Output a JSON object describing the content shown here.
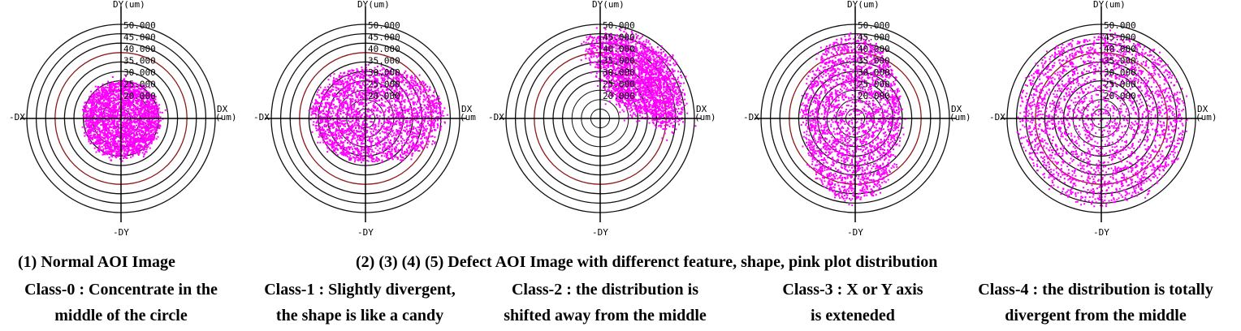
{
  "chart_data": [
    {
      "type": "scatter",
      "label": "Class-0",
      "axis_labels": {
        "dy": "DY(um)",
        "dx": "DX",
        "dx_unit": "(um)",
        "neg_dx": "-DX",
        "neg_dy": "-DY"
      },
      "ring_labels": [
        "50.000",
        "45.000",
        "40.000",
        "35.000",
        "30.000",
        "25.000",
        "20.000"
      ],
      "rings": [
        20,
        25,
        30,
        35,
        40,
        45,
        50
      ],
      "red_ring": 35,
      "rmax": 50,
      "distribution": {
        "shape": "ellipse",
        "cx": 0,
        "cy": 0,
        "rx": 20,
        "ry": 20,
        "color": "#ff00ff"
      }
    },
    {
      "type": "scatter",
      "label": "Class-1",
      "axis_labels": {
        "dy": "DY(um)",
        "dx": "DX",
        "dx_unit": "(um",
        "neg_dx": "-DX",
        "neg_dy": "-DY"
      },
      "ring_labels": [
        "50.000",
        "45.000",
        "40.000",
        "35.000",
        "30.000",
        "25.000",
        "20.000"
      ],
      "rings": [
        20,
        25,
        30,
        35,
        40,
        45,
        50
      ],
      "red_ring": 35,
      "rmax": 50,
      "distribution": {
        "shape": "candy",
        "cx": 2,
        "cy": 2,
        "rx": 34,
        "ry": 25,
        "color": "#ff00ff"
      }
    },
    {
      "type": "scatter",
      "label": "Class-2",
      "axis_labels": {
        "dy": "DY(um)",
        "dx": "DX",
        "dx_unit": "(um)",
        "neg_dx": "-DX",
        "neg_dy": "-DY"
      },
      "ring_labels": [
        "50.000",
        "45.000",
        "40.000",
        "35.000",
        "30.000",
        "25.000",
        "20.000"
      ],
      "rings": [
        20,
        25,
        30,
        35,
        40,
        45,
        50
      ],
      "red_ring": 35,
      "rmax": 50,
      "distribution": {
        "shape": "shifted",
        "cx": 12,
        "cy": 16,
        "rx": 30,
        "ry": 34,
        "color": "#ff00ff"
      }
    },
    {
      "type": "scatter",
      "label": "Class-3",
      "axis_labels": {
        "dy": "DY(um)",
        "dx": "DX",
        "dx_unit": "(um)",
        "neg_dx": "-DX",
        "neg_dy": "-DY"
      },
      "ring_labels": [
        "50.000",
        "45.000",
        "40.000",
        "35.000",
        "30.000",
        "25.000",
        "20.000"
      ],
      "rings": [
        20,
        25,
        30,
        35,
        40,
        45,
        50
      ],
      "red_ring": 35,
      "rmax": 50,
      "distribution": {
        "shape": "ellipse",
        "cx": -2,
        "cy": 0,
        "rx": 26,
        "ry": 44,
        "color": "#ff00ff"
      }
    },
    {
      "type": "scatter",
      "label": "Class-4",
      "axis_labels": {
        "dy": "DY(um)",
        "dx": "DX",
        "dx_unit": "(um)",
        "neg_dx": "-DX",
        "neg_dy": "-DY"
      },
      "ring_labels": [
        "50.000",
        "45.000",
        "40.000",
        "35.000",
        "30.000",
        "25.000",
        "20.000"
      ],
      "rings": [
        20,
        25,
        30,
        35,
        40,
        45,
        50
      ],
      "red_ring": 35,
      "rmax": 50,
      "distribution": {
        "shape": "ellipse",
        "cx": 0,
        "cy": 0,
        "rx": 44,
        "ry": 45,
        "color": "#ff00ff"
      }
    }
  ],
  "captions": {
    "normal_title": "(1) Normal AOI Image",
    "defect_title": "(2) (3) (4) (5) Defect AOI Image with differenct feature, shape, pink plot distribution",
    "classes": [
      {
        "line1": "Class-0 : Concentrate in the",
        "line2": "middle of the circle"
      },
      {
        "line1": "Class-1 : Slightly divergent,",
        "line2": "the shape is like a candy"
      },
      {
        "line1": "Class-2 : the distribution is",
        "line2": "shifted away from the middle"
      },
      {
        "line1": "Class-3 : X or Y axis",
        "line2": "is exteneded"
      },
      {
        "line1": "Class-4 : the distribution is totally",
        "line2": "divergent from the middle"
      }
    ]
  }
}
